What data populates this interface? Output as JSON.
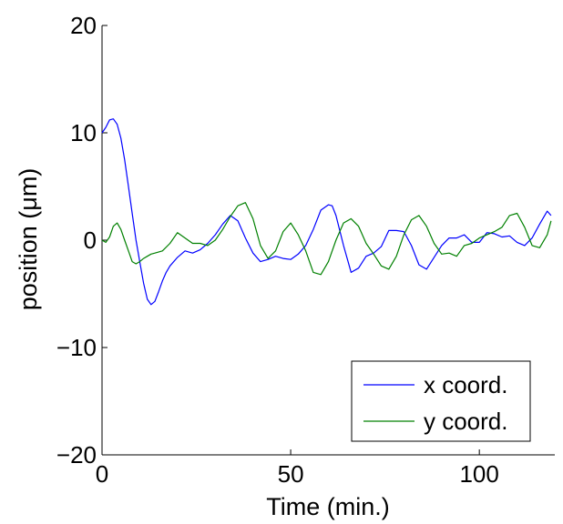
{
  "chart_data": {
    "type": "line",
    "xlabel": "Time (min.)",
    "ylabel": "position (μm)",
    "xlim": [
      0,
      120
    ],
    "ylim": [
      -20,
      20
    ],
    "x_ticks": [
      0,
      50,
      100
    ],
    "y_ticks": [
      -20,
      -10,
      0,
      10,
      20
    ],
    "x_tick_labels": [
      "0",
      "50",
      "100"
    ],
    "y_tick_labels": [
      "−20",
      "−10",
      "0",
      "10",
      "20"
    ],
    "grid": false,
    "legend_position": "bottom-right",
    "series": [
      {
        "name": "x coord.",
        "color": "#0000ff",
        "x": [
          0,
          1,
          2,
          3,
          4,
          5,
          6,
          7,
          8,
          9,
          10,
          11,
          12,
          13,
          14,
          15,
          16,
          17,
          18,
          20,
          22,
          24,
          26,
          28,
          30,
          32,
          34,
          36,
          38,
          40,
          42,
          44,
          46,
          48,
          50,
          52,
          54,
          56,
          58,
          60,
          61,
          62,
          64,
          66,
          68,
          70,
          72,
          74,
          76,
          78,
          80,
          82,
          84,
          86,
          88,
          90,
          92,
          94,
          96,
          98,
          100,
          102,
          104,
          106,
          108,
          110,
          112,
          114,
          116,
          118,
          119
        ],
        "y": [
          10,
          10.5,
          11.2,
          11.3,
          10.8,
          9.5,
          7.5,
          5,
          2.5,
          0,
          -2,
          -4,
          -5.5,
          -6,
          -5.7,
          -4.8,
          -3.8,
          -3,
          -2.4,
          -1.6,
          -1,
          -1.2,
          -0.9,
          -0.3,
          0.5,
          1.5,
          2.3,
          1.8,
          0.2,
          -1.2,
          -2,
          -1.8,
          -1.5,
          -1.7,
          -1.8,
          -1.3,
          -0.5,
          1,
          2.8,
          3.3,
          3.2,
          2.3,
          -0.5,
          -3,
          -2.6,
          -1.5,
          -1.2,
          -0.6,
          0.9,
          0.9,
          0.8,
          -0.5,
          -2.3,
          -2.7,
          -1.6,
          -0.5,
          0.2,
          0.2,
          0.5,
          -0.2,
          -0.2,
          0.7,
          0.6,
          0.3,
          0.4,
          -0.2,
          -0.5,
          0.2,
          1.5,
          2.7,
          2.3
        ]
      },
      {
        "name": "y coord.",
        "color": "#008000",
        "x": [
          0,
          1,
          2,
          3,
          4,
          5,
          6,
          7,
          8,
          9,
          10,
          11,
          12,
          13,
          14,
          16,
          18,
          20,
          22,
          24,
          26,
          28,
          30,
          32,
          34,
          36,
          38,
          40,
          42,
          44,
          46,
          48,
          50,
          52,
          54,
          56,
          58,
          60,
          62,
          64,
          66,
          68,
          70,
          72,
          74,
          76,
          78,
          80,
          82,
          84,
          86,
          88,
          90,
          92,
          94,
          96,
          98,
          100,
          102,
          104,
          106,
          108,
          110,
          112,
          114,
          116,
          118,
          119
        ],
        "y": [
          0,
          -0.2,
          0.3,
          1.3,
          1.6,
          1,
          0,
          -1,
          -2,
          -2.2,
          -2,
          -1.7,
          -1.5,
          -1.3,
          -1.2,
          -1,
          -0.3,
          0.7,
          0.2,
          -0.3,
          -0.3,
          -0.5,
          0,
          1,
          2.2,
          3.2,
          3.5,
          2,
          -0.5,
          -1.7,
          -1,
          0.8,
          1.6,
          0.5,
          -1,
          -3,
          -3.2,
          -2,
          0,
          1.6,
          2,
          1.3,
          -0.3,
          -1.3,
          -2.4,
          -2.7,
          -1.5,
          0.5,
          1.9,
          2.3,
          1.3,
          -0.3,
          -1.3,
          -1.2,
          -1.5,
          -0.5,
          -0.3,
          0.2,
          0.5,
          0.8,
          1.2,
          2.3,
          2.5,
          1.2,
          -0.5,
          -0.7,
          0.5,
          1.8
        ]
      }
    ]
  }
}
